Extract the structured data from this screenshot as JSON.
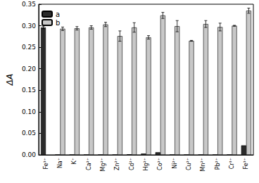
{
  "chart_data": {
    "type": "bar",
    "y_label": "ΔA",
    "categories": [
      "Fe³⁺",
      "Na⁺",
      "K⁺",
      "Ca²⁺",
      "Mg²⁺",
      "Zn²⁺",
      "Cd²⁺",
      "Hg²⁺",
      "Co²⁺",
      "Ni²⁺",
      "Cu²⁺",
      "Mn²⁺",
      "Pb²⁺",
      "Cr³⁺",
      "Fe³⁺"
    ],
    "series": [
      {
        "name": "a",
        "color": "#2b2b2b",
        "values": [
          0.296,
          0,
          0,
          0,
          0,
          0,
          0.001,
          0.003,
          0.006,
          0,
          0,
          0,
          0,
          0,
          0.022
        ],
        "errors": [
          0.003,
          null,
          null,
          null,
          null,
          null,
          null,
          null,
          null,
          null,
          null,
          null,
          null,
          null,
          null
        ]
      },
      {
        "name": "b",
        "color": "#c8c8c8",
        "values": [
          null,
          0.293,
          0.294,
          0.296,
          0.303,
          0.276,
          0.296,
          0.273,
          0.324,
          0.299,
          0.265,
          0.304,
          0.297,
          0.3,
          0.335
        ],
        "errors": [
          null,
          0.004,
          0.004,
          0.004,
          0.005,
          0.012,
          0.011,
          0.004,
          0.007,
          0.013,
          0.001,
          0.008,
          0.009,
          0.001,
          0.006
        ]
      }
    ],
    "ylim": [
      0,
      0.35
    ],
    "yticks": [
      {
        "value": 0,
        "label": "0.00"
      },
      {
        "value": 0.05,
        "label": "0.05"
      },
      {
        "value": 0.1,
        "label": "0.10"
      },
      {
        "value": 0.15,
        "label": "0.15"
      },
      {
        "value": 0.2,
        "label": "0.20"
      },
      {
        "value": 0.25,
        "label": "0.25"
      },
      {
        "value": 0.3,
        "label": "0.30"
      },
      {
        "value": 0.35,
        "label": "0.35"
      }
    ],
    "legend": "upper left",
    "grid": false
  }
}
